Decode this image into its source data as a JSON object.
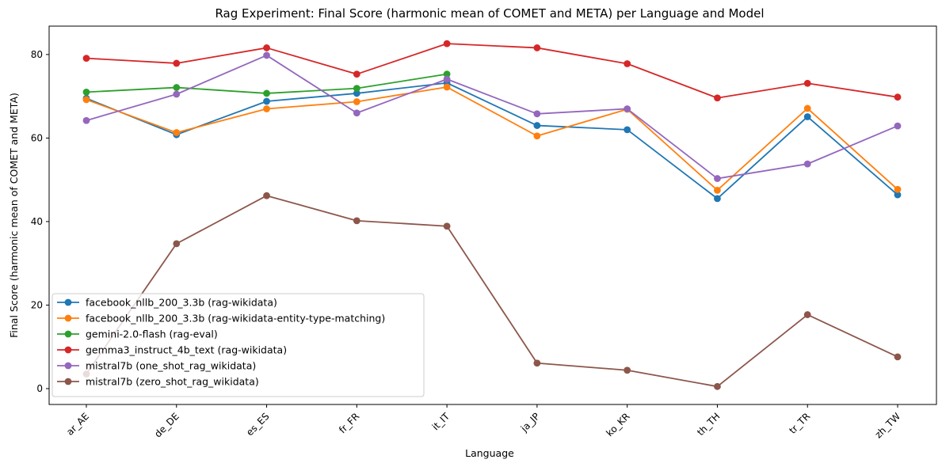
{
  "chart_data": {
    "type": "line",
    "title": "Rag Experiment: Final Score (harmonic mean of COMET and META) per Language and Model",
    "xlabel": "Language",
    "ylabel": "Final Score (harmonic mean of COMET and META)",
    "categories": [
      "ar_AE",
      "de_DE",
      "es_ES",
      "fr_FR",
      "it_IT",
      "ja_JP",
      "ko_KR",
      "th_TH",
      "tr_TR",
      "zh_TW"
    ],
    "ylim": [
      -3.8,
      86.8
    ],
    "yticks": [
      0,
      20,
      40,
      60,
      80
    ],
    "grid": false,
    "legend_position": "lower-left",
    "series": [
      {
        "name": "facebook_nllb_200_3.3b (rag-wikidata)",
        "color": "#1f77b4",
        "values": [
          69.5,
          60.8,
          68.8,
          70.7,
          73.2,
          63.0,
          62.0,
          45.5,
          65.1,
          46.4
        ]
      },
      {
        "name": "facebook_nllb_200_3.3b (rag-wikidata-entity-type-matching)",
        "color": "#ff7f0e",
        "values": [
          69.2,
          61.3,
          67.0,
          68.7,
          72.2,
          60.5,
          66.9,
          47.5,
          67.1,
          47.7
        ]
      },
      {
        "name": "gemini-2.0-flash (rag-eval)",
        "color": "#2ca02c",
        "values": [
          71.0,
          72.1,
          70.7,
          71.9,
          75.3,
          null,
          null,
          null,
          null,
          null
        ]
      },
      {
        "name": "gemma3_instruct_4b_text (rag-wikidata)",
        "color": "#d62728",
        "values": [
          79.1,
          77.9,
          81.6,
          75.3,
          82.6,
          81.6,
          77.8,
          69.6,
          73.1,
          69.8
        ]
      },
      {
        "name": "mistral7b (one_shot_rag_wikidata)",
        "color": "#9467bd",
        "values": [
          64.2,
          70.5,
          79.8,
          66.0,
          74.1,
          65.8,
          67.0,
          50.3,
          53.8,
          62.9
        ]
      },
      {
        "name": "mistral7b (zero_shot_rag_wikidata)",
        "color": "#8c564b",
        "values": [
          3.5,
          34.7,
          46.2,
          40.2,
          38.9,
          6.1,
          4.4,
          0.5,
          17.7,
          7.6
        ]
      }
    ]
  }
}
